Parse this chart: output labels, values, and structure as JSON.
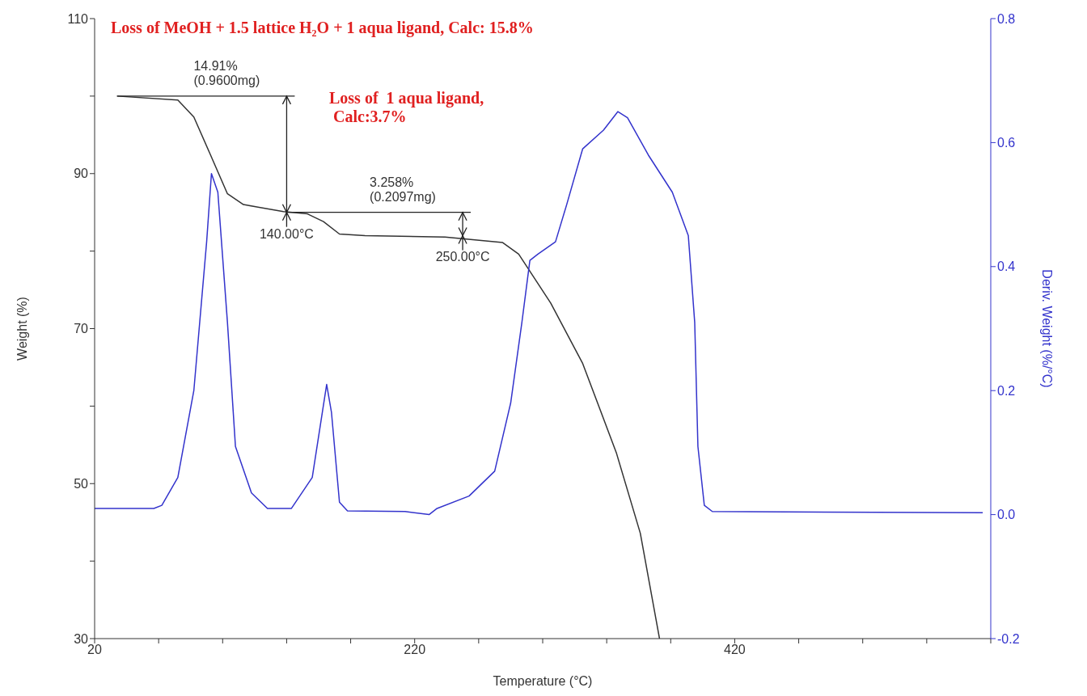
{
  "chart_data": {
    "type": "line",
    "xlabel": "Temperature (°C)",
    "ylabel": "Weight (%)",
    "y2label": "Deriv. Weight (%/°C)",
    "xlim": [
      20,
      580
    ],
    "xticks": [
      20,
      {
        "value": 60,
        "label": null
      },
      {
        "value": 100,
        "label": null
      },
      {
        "value": 140,
        "label": null
      },
      {
        "value": 180,
        "label": null
      },
      220,
      {
        "value": 260,
        "label": null
      },
      {
        "value": 300,
        "label": null
      },
      {
        "value": 340,
        "label": null
      },
      {
        "value": 380,
        "label": null
      },
      420,
      {
        "value": 460,
        "label": null
      },
      {
        "value": 500,
        "label": null
      },
      {
        "value": 540,
        "label": null
      },
      {
        "value": 580,
        "label": null
      }
    ],
    "ylim": [
      30,
      110
    ],
    "yticks": [
      30,
      {
        "value": 40,
        "label": null
      },
      50,
      {
        "value": 60,
        "label": null
      },
      70,
      {
        "value": 80,
        "label": null
      },
      90,
      {
        "value": 100,
        "label": null
      },
      110
    ],
    "y2lim": [
      -0.2,
      0.8
    ],
    "y2ticks": [
      -0.2,
      {
        "value": 0,
        "label": "0.0"
      },
      0.2,
      0.4,
      0.6,
      0.8
    ],
    "series": [
      {
        "color": "#333333",
        "x": [
          34,
          72,
          82,
          92,
          103,
          113,
          138,
          153,
          163,
          173,
          189,
          239,
          275,
          285,
          305,
          325,
          346,
          361,
          373
        ],
        "values": [
          100,
          99.5,
          97.3,
          92.6,
          87.4,
          86,
          85.1,
          84.8,
          83.8,
          82.2,
          82,
          81.8,
          81.1,
          79.6,
          73.3,
          65.5,
          54,
          43.6,
          30
        ]
      },
      {
        "color": "#3333cc",
        "axis": "y2",
        "x": [
          20,
          57,
          62,
          72,
          82,
          90,
          93,
          97,
          103,
          108,
          118,
          128,
          143,
          156,
          165,
          168,
          173,
          178,
          214,
          229,
          234,
          254,
          270,
          280,
          287,
          292,
          297,
          308,
          315,
          325,
          338,
          347,
          353,
          366,
          381,
          391,
          395,
          397,
          401,
          406,
          575
        ],
        "values": [
          0.01,
          0.01,
          0.015,
          0.06,
          0.2,
          0.44,
          0.55,
          0.52,
          0.31,
          0.11,
          0.035,
          0.01,
          0.01,
          0.06,
          0.21,
          0.165,
          0.02,
          0.006,
          0.005,
          0.0,
          0.01,
          0.03,
          0.07,
          0.18,
          0.31,
          0.41,
          0.42,
          0.44,
          0.5,
          0.59,
          0.62,
          0.65,
          0.64,
          0.58,
          0.52,
          0.45,
          0.31,
          0.11,
          0.015,
          0.005,
          0.003
        ]
      }
    ],
    "annotations": [
      "Loss of MeOH + 1.5 lattice H₂O + 1 aqua ligand, Calc: 15.8%",
      "Loss of  1 aqua ligand,\n Calc:3.7%",
      "14.91%\n(0.9600mg)",
      "3.258%\n(0.2097mg)",
      {
        "text": "140.00°C",
        "x": 140,
        "y": 85
      },
      {
        "text": "250.00°C",
        "x": 250,
        "y": 82
      }
    ],
    "grid": false,
    "marker": "none",
    "line_style": "solid"
  }
}
